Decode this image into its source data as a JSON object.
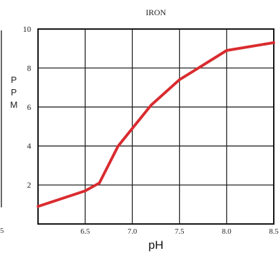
{
  "chart_data": {
    "type": "line",
    "title": "IRON",
    "xlabel": "pH",
    "ylabel_letters": [
      "P",
      "P",
      "M"
    ],
    "x_ticks": [
      "6.5",
      "7.0",
      "7.5",
      "8.0",
      "8.5"
    ],
    "x_tick_values": [
      6.5,
      7.0,
      7.5,
      8.0,
      8.5
    ],
    "y_ticks": [
      "2",
      "4",
      "6",
      "8",
      "10"
    ],
    "y_tick_values": [
      2,
      4,
      6,
      8,
      10
    ],
    "edge_tick_label": "5",
    "xlim": [
      6.0,
      8.5
    ],
    "ylim": [
      0,
      10
    ],
    "grid": true,
    "line_color": "#d92b2f",
    "series": [
      {
        "x": [
          6.0,
          6.5,
          6.65,
          6.85,
          7.0,
          7.2,
          7.5,
          7.7,
          8.0,
          8.5
        ],
        "y": [
          0.9,
          1.7,
          2.1,
          4.0,
          4.9,
          6.1,
          7.4,
          8.0,
          8.9,
          9.3
        ]
      }
    ]
  }
}
